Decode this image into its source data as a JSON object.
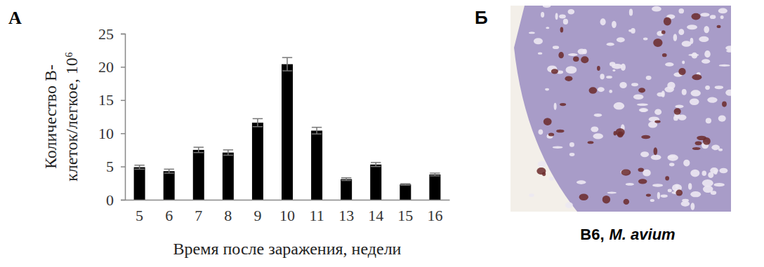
{
  "chart_data": {
    "type": "bar",
    "panel_label": "А",
    "y_label": "Количество В-\nклеток/легкое, 10⁶",
    "x_label": "Время после заражения, недели",
    "categories": [
      "5",
      "6",
      "7",
      "8",
      "9",
      "10",
      "11",
      "13",
      "14",
      "15",
      "16"
    ],
    "values": [
      4.9,
      4.3,
      7.5,
      7.1,
      11.6,
      20.4,
      10.4,
      3.1,
      5.3,
      2.3,
      3.8
    ],
    "errors": [
      0.3,
      0.3,
      0.4,
      0.4,
      0.6,
      1.0,
      0.5,
      0.2,
      0.3,
      0.1,
      0.2
    ],
    "color": "#000000",
    "ylim": [
      0,
      25
    ],
    "yticks": [
      0,
      5,
      10,
      15,
      20,
      25
    ],
    "grid": false
  },
  "image_panel": {
    "panel_label": "Б",
    "caption": [
      "B6,",
      "M. avium"
    ]
  }
}
